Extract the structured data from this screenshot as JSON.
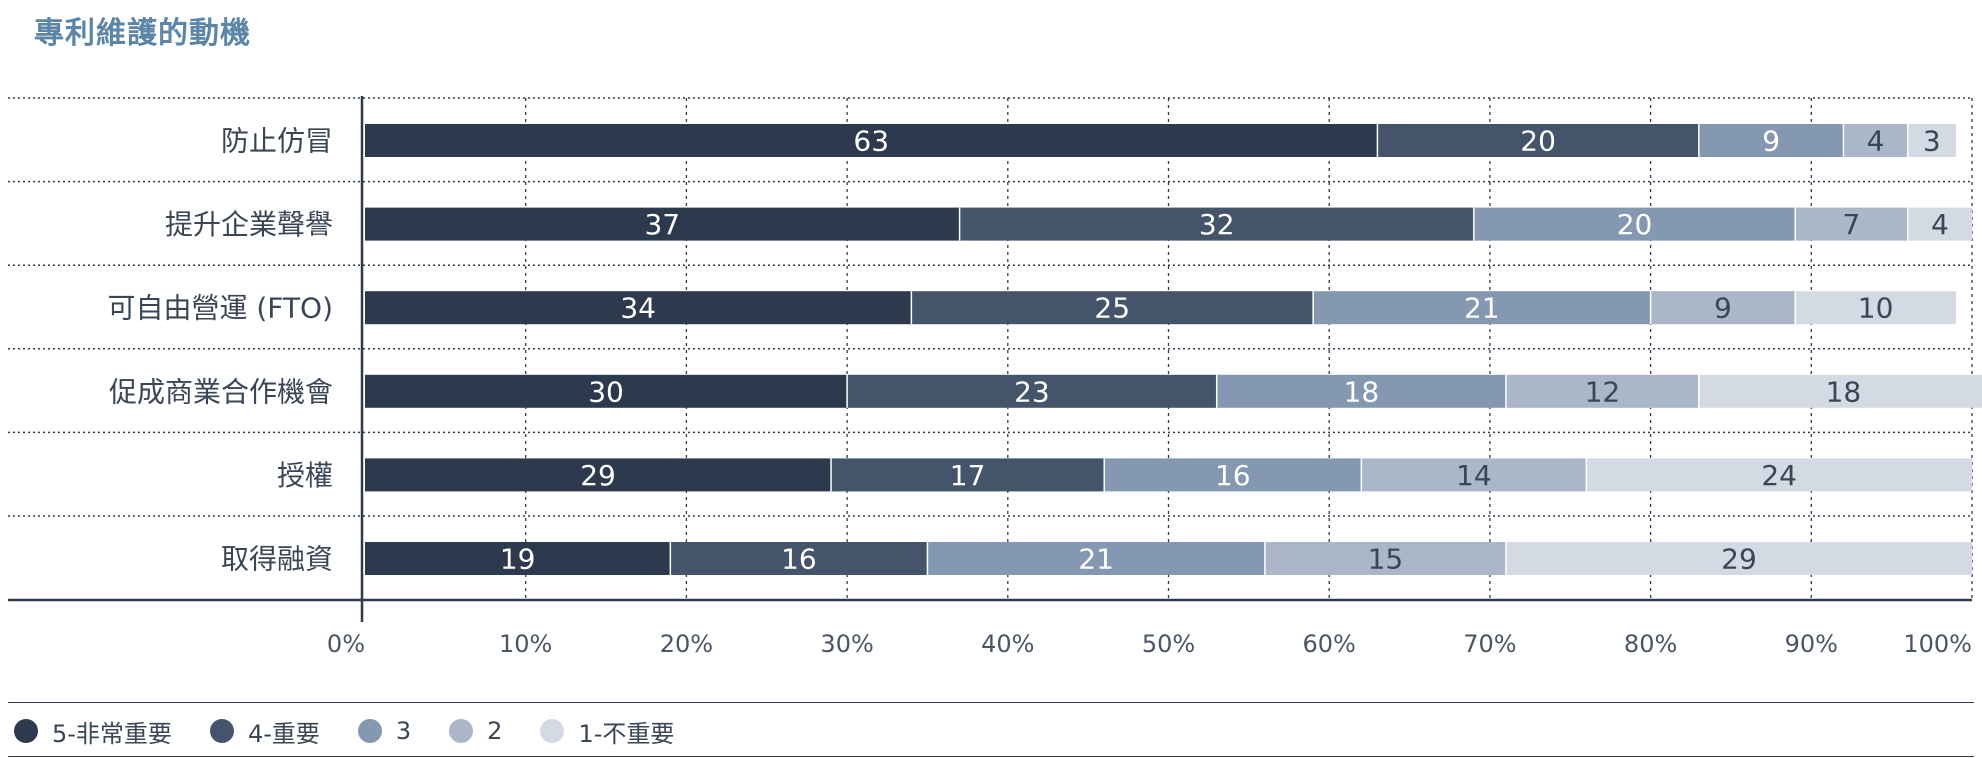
{
  "title": "專利維護的動機",
  "chart_data": {
    "type": "bar",
    "orientation": "horizontal",
    "stacked": true,
    "categories": [
      "防止仿冒",
      "提升企業聲譽",
      "可自由營運 (FTO)",
      "促成商業合作機會",
      "授權",
      "取得融資"
    ],
    "series": [
      {
        "name": "5-非常重要",
        "color": "#2d3a4e",
        "label_color": "#ffffff",
        "values": [
          63,
          37,
          34,
          30,
          29,
          19
        ]
      },
      {
        "name": "4-重要",
        "color": "#44546b",
        "label_color": "#ffffff",
        "values": [
          20,
          32,
          25,
          23,
          17,
          16
        ]
      },
      {
        "name": "3",
        "color": "#8498b2",
        "label_color": "#ffffff",
        "values": [
          9,
          20,
          21,
          18,
          16,
          21
        ]
      },
      {
        "name": "2",
        "color": "#abb7c8",
        "label_color": "#3a4556",
        "values": [
          4,
          7,
          9,
          12,
          14,
          15
        ]
      },
      {
        "name": "1-不重要",
        "color": "#d3dae4",
        "label_color": "#3a4556",
        "values": [
          3,
          4,
          10,
          18,
          24,
          29
        ]
      }
    ],
    "x_ticks": [
      "0%",
      "10%",
      "20%",
      "30%",
      "40%",
      "50%",
      "60%",
      "70%",
      "80%",
      "90%",
      "100%"
    ],
    "xlim": [
      0,
      100
    ],
    "grid": "vertical-dotted",
    "legend_position": "bottom"
  }
}
